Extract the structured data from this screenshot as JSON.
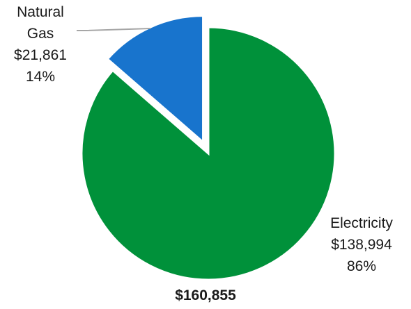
{
  "colors": {
    "electricity": "#00913A",
    "natural_gas": "#1874CD",
    "leader": "#A6A6A6",
    "background": "#FFFFFF"
  },
  "chart_data": {
    "type": "pie",
    "series": [
      {
        "label": "Natural Gas",
        "value_text": "$21,861",
        "percent_text": "14%",
        "value": 21861,
        "percent": 14
      },
      {
        "label": "Electricity",
        "value_text": "$138,994",
        "percent_text": "86%",
        "value": 138994,
        "percent": 86
      }
    ],
    "total_text": "$160,855",
    "total": 160855,
    "exploded_slice": "Natural Gas",
    "legend": "none"
  },
  "labels": {
    "natural_gas": {
      "line1": "Natural",
      "line2": "Gas",
      "value": "$21,861",
      "percent": "14%"
    },
    "electricity": {
      "line1": "Electricity",
      "value": "$138,994",
      "percent": "86%"
    },
    "total": "$160,855"
  }
}
